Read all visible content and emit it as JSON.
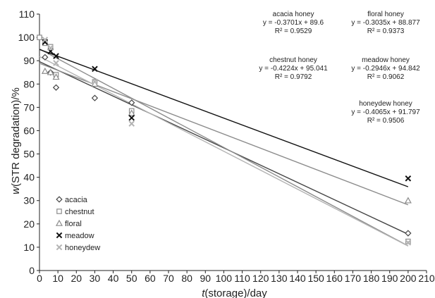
{
  "chart_data": {
    "type": "scatter",
    "xlabel_italic": "t",
    "xlabel_rest": "(storage)/day",
    "ylabel_italic": "w",
    "ylabel_rest": "(STR degradation)/%",
    "xlim": [
      0,
      210
    ],
    "ylim": [
      0,
      110
    ],
    "xticks": [
      "0",
      "10",
      "20",
      "30",
      "40",
      "50",
      "60",
      "70",
      "80",
      "90",
      "100",
      "110",
      "120",
      "130",
      "140",
      "150",
      "160",
      "170",
      "180",
      "190",
      "200",
      "210"
    ],
    "yticks": [
      "0",
      "10",
      "20",
      "30",
      "40",
      "50",
      "60",
      "70",
      "80",
      "90",
      "100",
      "110"
    ],
    "grid": false,
    "legend_position": "bottom-left",
    "series": [
      {
        "name": "acacia",
        "marker": "diamond",
        "color": "#444444",
        "line": {
          "slope": -0.3701,
          "intercept": 89.6
        },
        "points": [
          [
            0,
            100
          ],
          [
            3,
            91.5
          ],
          [
            6,
            85
          ],
          [
            9,
            78.5
          ],
          [
            30,
            74
          ],
          [
            50,
            72
          ],
          [
            200,
            16
          ]
        ]
      },
      {
        "name": "chestnut",
        "marker": "square",
        "color": "#8c8c8c",
        "line": {
          "slope": -0.4224,
          "intercept": 95.041
        },
        "points": [
          [
            0,
            100
          ],
          [
            3,
            97.5
          ],
          [
            6,
            96
          ],
          [
            9,
            84
          ],
          [
            30,
            81
          ],
          [
            50,
            68.5
          ],
          [
            200,
            12.5
          ]
        ]
      },
      {
        "name": "floral",
        "marker": "triangle",
        "color": "#8c8c8c",
        "line": {
          "slope": -0.3035,
          "intercept": 88.877
        },
        "points": [
          [
            3,
            85.5
          ],
          [
            6,
            85
          ],
          [
            9,
            83
          ],
          [
            30,
            80
          ],
          [
            50,
            67.5
          ],
          [
            200,
            30
          ]
        ]
      },
      {
        "name": "meadow",
        "marker": "x",
        "color": "#111111",
        "line": {
          "slope": -0.2946,
          "intercept": 94.842
        },
        "points": [
          [
            3,
            98
          ],
          [
            6,
            94
          ],
          [
            9,
            92
          ],
          [
            30,
            86.5
          ],
          [
            50,
            65.5
          ],
          [
            200,
            39.5
          ]
        ]
      },
      {
        "name": "honeydew",
        "marker": "x",
        "color": "#b4b4b4",
        "line": {
          "slope": -0.4065,
          "intercept": 91.797
        },
        "points": [
          [
            3,
            99
          ],
          [
            6,
            95.5
          ],
          [
            9,
            89
          ],
          [
            30,
            81
          ],
          [
            50,
            63
          ],
          [
            200,
            12
          ]
        ]
      }
    ],
    "annotations": [
      {
        "title": "acacia honey",
        "equation": "y = -0.3701x + 89.6",
        "r2": "R² = 0.9529"
      },
      {
        "title": "floral honey",
        "equation": "y = -0.3035x + 88.877",
        "r2": "R² = 0.9373"
      },
      {
        "title": "chestnut honey",
        "equation": "y = -0.4224x + 95.041",
        "r2": "R² = 0.9792"
      },
      {
        "title": "meadow honey",
        "equation": "y = -0.2946x + 94.842",
        "r2": "R² = 0.9062"
      },
      {
        "title": "honeydew honey",
        "equation": "y = -0.4065x + 91.797",
        "r2": "R² = 0.9506"
      }
    ]
  }
}
